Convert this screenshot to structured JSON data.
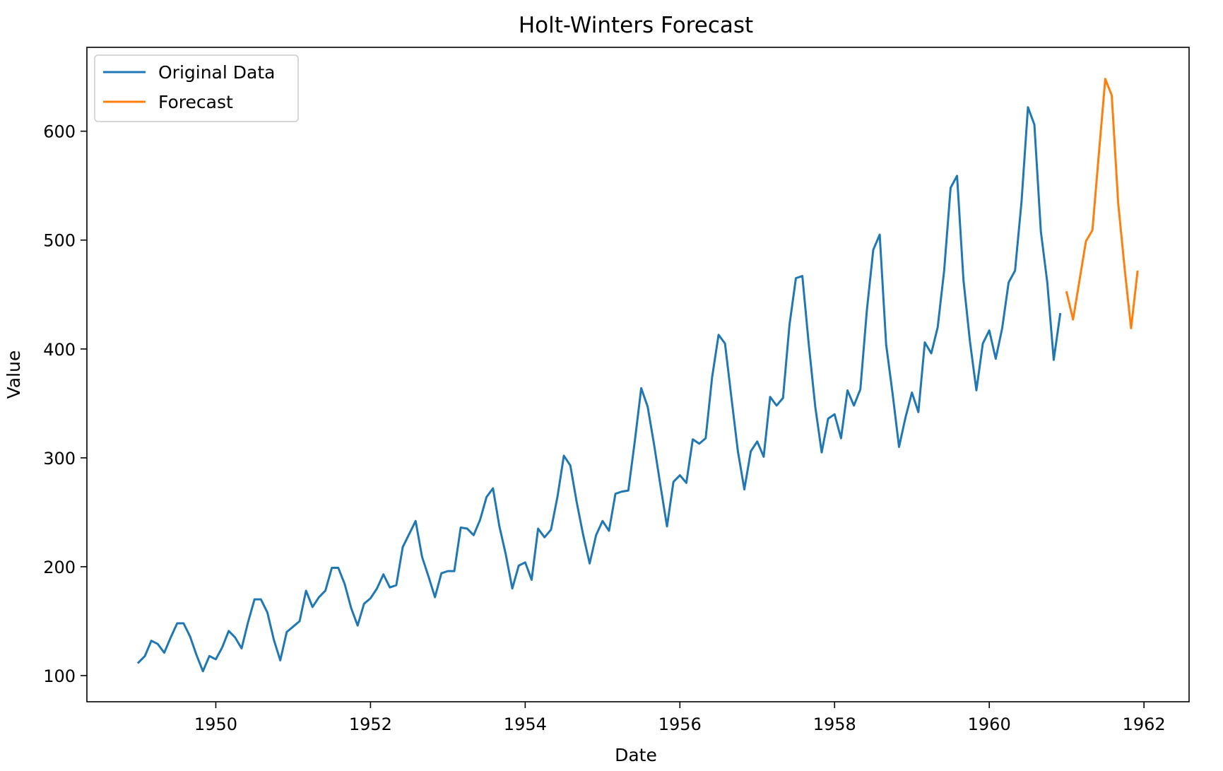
{
  "chart_data": {
    "type": "line",
    "title": "Holt-Winters Forecast",
    "xlabel": "Date",
    "ylabel": "Value",
    "xlim": [
      "1948-05-01",
      "1962-08-01"
    ],
    "ylim": [
      76,
      677
    ],
    "x_ticks": [
      "1950",
      "1952",
      "1954",
      "1956",
      "1958",
      "1960",
      "1962"
    ],
    "y_ticks": [
      "100",
      "200",
      "300",
      "400",
      "500",
      "600"
    ],
    "grid": false,
    "legend_position": "top-left",
    "series": [
      {
        "name": "Original Data",
        "color": "#1f77b4",
        "start": "1949-01",
        "values": [
          112,
          118,
          132,
          129,
          121,
          135,
          148,
          148,
          136,
          119,
          104,
          118,
          115,
          126,
          141,
          135,
          125,
          149,
          170,
          170,
          158,
          133,
          114,
          140,
          145,
          150,
          178,
          163,
          172,
          178,
          199,
          199,
          184,
          162,
          146,
          166,
          171,
          180,
          193,
          181,
          183,
          218,
          230,
          242,
          209,
          191,
          172,
          194,
          196,
          196,
          236,
          235,
          229,
          243,
          264,
          272,
          237,
          211,
          180,
          201,
          204,
          188,
          235,
          227,
          234,
          264,
          302,
          293,
          259,
          229,
          203,
          229,
          242,
          233,
          267,
          269,
          270,
          315,
          364,
          347,
          312,
          274,
          237,
          278,
          284,
          277,
          317,
          313,
          318,
          374,
          413,
          405,
          355,
          306,
          271,
          306,
          315,
          301,
          356,
          348,
          355,
          422,
          465,
          467,
          404,
          347,
          305,
          336,
          340,
          318,
          362,
          348,
          363,
          435,
          491,
          505,
          404,
          359,
          310,
          337,
          360,
          342,
          406,
          396,
          420,
          472,
          548,
          559,
          463,
          407,
          362,
          405,
          417,
          391,
          419,
          461,
          472,
          535,
          622,
          606,
          508,
          461,
          390,
          432
        ]
      },
      {
        "name": "Forecast",
        "color": "#ff7f0e",
        "start": "1961-01",
        "values": [
          452,
          427,
          463,
          499,
          509,
          579,
          648,
          633,
          534,
          474,
          419,
          471
        ]
      }
    ]
  }
}
